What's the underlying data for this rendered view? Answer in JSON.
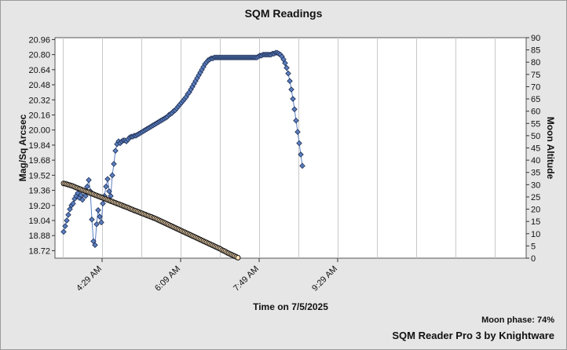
{
  "chart_data": {
    "type": "scatter",
    "title": "SQM Readings",
    "xlabel": "Time on 7/5/2025",
    "ylabel": "Mag/Sq Arcsec",
    "y2label": "Moon Altitude",
    "x_ticks": [
      "4:29 AM",
      "6:09 AM",
      "7:49 AM",
      "9:29 AM"
    ],
    "x_tick_minutes": [
      269,
      369,
      469,
      569
    ],
    "xlim_minutes": [
      209,
      809
    ],
    "ylim": [
      18.64,
      20.98
    ],
    "y_ticks": [
      18.72,
      18.88,
      19.04,
      19.2,
      19.36,
      19.52,
      19.68,
      19.84,
      20.0,
      20.16,
      20.32,
      20.48,
      20.64,
      20.8,
      20.96
    ],
    "y2lim": [
      0,
      90
    ],
    "y2_ticks": [
      0,
      5,
      10,
      15,
      20,
      25,
      30,
      35,
      40,
      45,
      50,
      55,
      60,
      65,
      70,
      75,
      80,
      85,
      90
    ],
    "grid": true,
    "series": [
      {
        "role": "sqm",
        "axis": "left",
        "color": "#5b7fc0",
        "points": [
          [
            220,
            18.92
          ],
          [
            222,
            18.98
          ],
          [
            224,
            19.04
          ],
          [
            226,
            19.1
          ],
          [
            228,
            19.16
          ],
          [
            230,
            19.2
          ],
          [
            232,
            19.22
          ],
          [
            234,
            19.27
          ],
          [
            236,
            19.3
          ],
          [
            238,
            19.33
          ],
          [
            240,
            19.28
          ],
          [
            242,
            19.31
          ],
          [
            244,
            19.26
          ],
          [
            246,
            19.36
          ],
          [
            248,
            19.3
          ],
          [
            250,
            19.4
          ],
          [
            252,
            19.47
          ],
          [
            254,
            19.35
          ],
          [
            256,
            19.05
          ],
          [
            258,
            18.82
          ],
          [
            260,
            18.78
          ],
          [
            262,
            19.0
          ],
          [
            264,
            19.15
          ],
          [
            266,
            19.08
          ],
          [
            268,
            19.02
          ],
          [
            270,
            19.22
          ],
          [
            272,
            19.3
          ],
          [
            274,
            19.4
          ],
          [
            276,
            19.48
          ],
          [
            278,
            19.35
          ],
          [
            280,
            19.3
          ],
          [
            282,
            19.52
          ],
          [
            284,
            19.64
          ],
          [
            286,
            19.78
          ],
          [
            288,
            19.85
          ],
          [
            290,
            19.88
          ],
          [
            292,
            19.86
          ],
          [
            294,
            19.88
          ],
          [
            296,
            19.89
          ],
          [
            298,
            19.89
          ],
          [
            300,
            19.88
          ],
          [
            302,
            19.9
          ],
          [
            304,
            19.92
          ],
          [
            306,
            19.93
          ],
          [
            308,
            19.93
          ],
          [
            310,
            19.94
          ],
          [
            312,
            19.94
          ],
          [
            314,
            19.95
          ],
          [
            316,
            19.96
          ],
          [
            318,
            19.97
          ],
          [
            320,
            19.98
          ],
          [
            322,
            19.99
          ],
          [
            324,
            20.0
          ],
          [
            326,
            20.01
          ],
          [
            328,
            20.02
          ],
          [
            330,
            20.03
          ],
          [
            332,
            20.04
          ],
          [
            334,
            20.05
          ],
          [
            336,
            20.06
          ],
          [
            338,
            20.07
          ],
          [
            340,
            20.08
          ],
          [
            342,
            20.09
          ],
          [
            344,
            20.1
          ],
          [
            346,
            20.11
          ],
          [
            348,
            20.12
          ],
          [
            350,
            20.13
          ],
          [
            352,
            20.14
          ],
          [
            354,
            20.16
          ],
          [
            356,
            20.17
          ],
          [
            358,
            20.18
          ],
          [
            360,
            20.2
          ],
          [
            362,
            20.21
          ],
          [
            364,
            20.23
          ],
          [
            366,
            20.25
          ],
          [
            368,
            20.27
          ],
          [
            370,
            20.29
          ],
          [
            372,
            20.31
          ],
          [
            374,
            20.33
          ],
          [
            376,
            20.35
          ],
          [
            378,
            20.38
          ],
          [
            380,
            20.4
          ],
          [
            382,
            20.43
          ],
          [
            384,
            20.46
          ],
          [
            386,
            20.49
          ],
          [
            388,
            20.52
          ],
          [
            390,
            20.55
          ],
          [
            392,
            20.58
          ],
          [
            394,
            20.61
          ],
          [
            396,
            20.64
          ],
          [
            398,
            20.67
          ],
          [
            400,
            20.7
          ],
          [
            402,
            20.72
          ],
          [
            404,
            20.74
          ],
          [
            406,
            20.75
          ],
          [
            408,
            20.76
          ],
          [
            410,
            20.76
          ],
          [
            412,
            20.77
          ],
          [
            414,
            20.77
          ],
          [
            416,
            20.77
          ],
          [
            418,
            20.77
          ],
          [
            420,
            20.77
          ],
          [
            422,
            20.77
          ],
          [
            424,
            20.77
          ],
          [
            426,
            20.77
          ],
          [
            428,
            20.77
          ],
          [
            430,
            20.77
          ],
          [
            432,
            20.77
          ],
          [
            434,
            20.77
          ],
          [
            436,
            20.77
          ],
          [
            438,
            20.77
          ],
          [
            440,
            20.77
          ],
          [
            442,
            20.77
          ],
          [
            444,
            20.77
          ],
          [
            446,
            20.77
          ],
          [
            448,
            20.77
          ],
          [
            450,
            20.77
          ],
          [
            452,
            20.77
          ],
          [
            454,
            20.77
          ],
          [
            456,
            20.77
          ],
          [
            458,
            20.77
          ],
          [
            460,
            20.77
          ],
          [
            462,
            20.77
          ],
          [
            464,
            20.77
          ],
          [
            466,
            20.77
          ],
          [
            468,
            20.78
          ],
          [
            470,
            20.79
          ],
          [
            472,
            20.79
          ],
          [
            474,
            20.8
          ],
          [
            476,
            20.8
          ],
          [
            478,
            20.8
          ],
          [
            480,
            20.8
          ],
          [
            482,
            20.8
          ],
          [
            484,
            20.8
          ],
          [
            486,
            20.81
          ],
          [
            488,
            20.81
          ],
          [
            490,
            20.82
          ],
          [
            492,
            20.82
          ],
          [
            494,
            20.81
          ],
          [
            496,
            20.8
          ],
          [
            498,
            20.78
          ],
          [
            500,
            20.75
          ],
          [
            502,
            20.71
          ],
          [
            504,
            20.66
          ],
          [
            506,
            20.6
          ],
          [
            508,
            20.52
          ],
          [
            510,
            20.43
          ],
          [
            512,
            20.33
          ],
          [
            514,
            20.22
          ],
          [
            516,
            20.1
          ],
          [
            518,
            19.98
          ],
          [
            520,
            19.86
          ],
          [
            522,
            19.74
          ],
          [
            524,
            19.62
          ]
        ]
      },
      {
        "role": "moon",
        "axis": "right",
        "color": "#ffe0b8",
        "points": [
          [
            220,
            30.5
          ],
          [
            222,
            30.4
          ],
          [
            224,
            30.2
          ],
          [
            226,
            30.0
          ],
          [
            228,
            29.8
          ],
          [
            230,
            29.6
          ],
          [
            232,
            29.4
          ],
          [
            234,
            29.1
          ],
          [
            236,
            28.8
          ],
          [
            238,
            28.6
          ],
          [
            240,
            28.3
          ],
          [
            242,
            28.1
          ],
          [
            244,
            27.8
          ],
          [
            246,
            27.6
          ],
          [
            248,
            27.3
          ],
          [
            250,
            27.1
          ],
          [
            252,
            26.9
          ],
          [
            254,
            26.6
          ],
          [
            256,
            26.3
          ],
          [
            258,
            26.1
          ],
          [
            260,
            25.8
          ],
          [
            262,
            25.6
          ],
          [
            264,
            25.3
          ],
          [
            266,
            25.1
          ],
          [
            268,
            24.8
          ],
          [
            270,
            24.6
          ],
          [
            272,
            24.3
          ],
          [
            274,
            24.1
          ],
          [
            276,
            23.8
          ],
          [
            278,
            23.6
          ],
          [
            280,
            23.3
          ],
          [
            282,
            23.1
          ],
          [
            284,
            22.8
          ],
          [
            286,
            22.6
          ],
          [
            288,
            22.3
          ],
          [
            290,
            22.1
          ],
          [
            292,
            21.8
          ],
          [
            294,
            21.6
          ],
          [
            296,
            21.3
          ],
          [
            298,
            21.1
          ],
          [
            300,
            20.8
          ],
          [
            302,
            20.6
          ],
          [
            304,
            20.3
          ],
          [
            306,
            20.0
          ],
          [
            308,
            19.8
          ],
          [
            310,
            19.5
          ],
          [
            312,
            19.3
          ],
          [
            314,
            19.0
          ],
          [
            316,
            18.8
          ],
          [
            318,
            18.5
          ],
          [
            320,
            18.3
          ],
          [
            322,
            18.0
          ],
          [
            324,
            17.8
          ],
          [
            326,
            17.5
          ],
          [
            328,
            17.3
          ],
          [
            330,
            17.0
          ],
          [
            332,
            16.8
          ],
          [
            334,
            16.5
          ],
          [
            336,
            16.3
          ],
          [
            338,
            16.0
          ],
          [
            340,
            15.7
          ],
          [
            342,
            15.4
          ],
          [
            344,
            15.1
          ],
          [
            346,
            14.8
          ],
          [
            348,
            14.5
          ],
          [
            350,
            14.2
          ],
          [
            352,
            13.9
          ],
          [
            354,
            13.6
          ],
          [
            356,
            13.3
          ],
          [
            358,
            13.0
          ],
          [
            360,
            12.7
          ],
          [
            362,
            12.4
          ],
          [
            364,
            12.1
          ],
          [
            366,
            11.8
          ],
          [
            368,
            11.5
          ],
          [
            370,
            11.2
          ],
          [
            372,
            10.9
          ],
          [
            374,
            10.6
          ],
          [
            376,
            10.3
          ],
          [
            378,
            10.0
          ],
          [
            380,
            9.7
          ],
          [
            382,
            9.4
          ],
          [
            384,
            9.1
          ],
          [
            386,
            8.8
          ],
          [
            388,
            8.5
          ],
          [
            390,
            8.2
          ],
          [
            392,
            7.9
          ],
          [
            394,
            7.6
          ],
          [
            396,
            7.3
          ],
          [
            398,
            7.0
          ],
          [
            400,
            6.7
          ],
          [
            402,
            6.4
          ],
          [
            404,
            6.1
          ],
          [
            406,
            5.8
          ],
          [
            408,
            5.5
          ],
          [
            410,
            5.2
          ],
          [
            412,
            4.9
          ],
          [
            414,
            4.6
          ],
          [
            416,
            4.3
          ],
          [
            418,
            4.0
          ],
          [
            420,
            3.7
          ],
          [
            422,
            3.3
          ],
          [
            424,
            3.0
          ],
          [
            426,
            2.7
          ],
          [
            428,
            2.3
          ],
          [
            430,
            2.0
          ],
          [
            432,
            1.7
          ],
          [
            434,
            1.4
          ],
          [
            436,
            1.1
          ],
          [
            438,
            0.8
          ],
          [
            440,
            0.5
          ],
          [
            442,
            0.2
          ]
        ]
      }
    ]
  },
  "footer": {
    "moon_phase": "Moon phase: 74%",
    "credit": "SQM Reader Pro 3 by Knightware"
  }
}
